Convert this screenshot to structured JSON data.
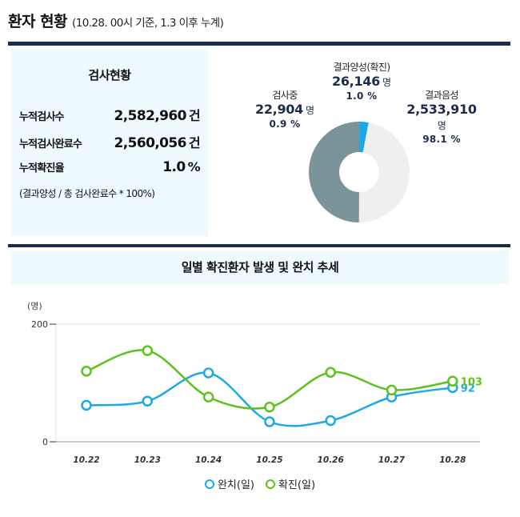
{
  "header": {
    "title": "환자 현황",
    "subtitle": "(10.28. 00시 기준, 1.3 이후 누계)"
  },
  "stats": {
    "title": "검사현황",
    "rows": [
      {
        "label": "누적검사수",
        "value": "2,582,960",
        "unit": "건"
      },
      {
        "label": "누적검사완료수",
        "value": "2,560,056",
        "unit": "건"
      },
      {
        "label": "누적확진율",
        "value": "1.0",
        "unit": "%"
      }
    ],
    "note": "(결과양성 / 총 검사완료수 * 100%)"
  },
  "donut": {
    "segments": [
      {
        "name": "결과양성(확진)",
        "value": "26,146",
        "unit": "명",
        "percent": "1.0 %",
        "share": 1.0,
        "color": "#1ea9e6"
      },
      {
        "name": "결과음성",
        "value": "2,533,910",
        "unit": "명",
        "percent": "98.1 %",
        "share": 98.1,
        "color": "#efefef"
      },
      {
        "name": "검사중",
        "value": "22,904",
        "unit": "명",
        "percent": "0.9 %",
        "share": 0.9,
        "color": "#7b949a"
      }
    ]
  },
  "chart_title": "일별 확진환자 발생 및 완치 추세",
  "chart_data": {
    "type": "line",
    "categories": [
      "10.22",
      "10.23",
      "10.24",
      "10.25",
      "10.26",
      "10.27",
      "10.28"
    ],
    "ylabel": "(명)",
    "ylim": [
      0,
      200
    ],
    "yticks": [
      "0",
      "200"
    ],
    "series": [
      {
        "name": "완치(일)",
        "color": "#1ea9e6",
        "values": [
          62,
          69,
          117,
          34,
          36,
          76,
          92
        ]
      },
      {
        "name": "확진(일)",
        "color": "#5cc21c",
        "values": [
          120,
          155,
          76,
          59,
          118,
          88,
          103
        ]
      }
    ],
    "end_labels": {
      "완치(일)": "92",
      "확진(일)": "103"
    },
    "legend": "bottom-center"
  }
}
